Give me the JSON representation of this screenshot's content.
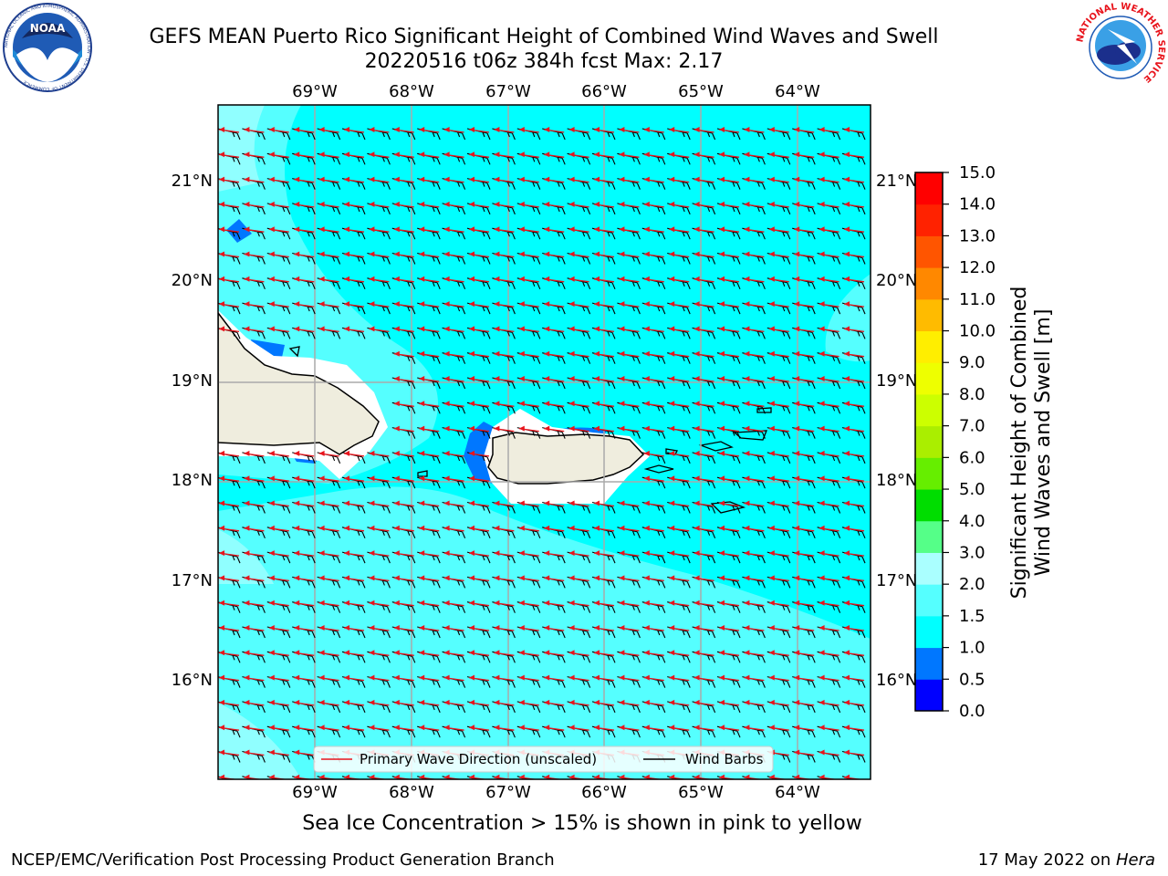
{
  "header": {
    "title_line1": "GEFS MEAN Puerto Rico Significant Height of Combined Wind Waves and Swell",
    "title_line2": "20220516 t06z 384h fcst   Max: 2.17"
  },
  "logos": {
    "noaa_text": "NOAA",
    "noaa_ring": "NATIONAL OCEANIC AND ATMOSPHERIC ADMINISTRATION · U.S. DEPARTMENT OF COMMERCE",
    "nws_ring": "NATIONAL WEATHER SERVICE"
  },
  "map": {
    "lon_labels": [
      "69°W",
      "68°W",
      "67°W",
      "66°W",
      "65°W",
      "64°W"
    ],
    "lat_labels": [
      "21°N",
      "20°N",
      "19°N",
      "18°N",
      "17°N",
      "16°N"
    ],
    "legend": {
      "wave_label": "Primary Wave Direction (unscaled)",
      "barb_label": "Wind Barbs",
      "wave_color": "#e8141c",
      "barb_color": "#000000"
    },
    "ocean_color": "#00ffff",
    "light_cyan": "#55ffff",
    "land_color": "#efedde"
  },
  "colorbar": {
    "label_line1": "Significant Height of Combined",
    "label_line2": "Wind Waves and Swell [m]",
    "ticks": [
      "0.0",
      "0.5",
      "1.0",
      "1.5",
      "2.0",
      "3.0",
      "4.0",
      "5.0",
      "6.0",
      "7.0",
      "8.0",
      "9.0",
      "10.0",
      "11.0",
      "12.0",
      "13.0",
      "14.0",
      "15.0"
    ],
    "colors": [
      "#0000ff",
      "#0077ff",
      "#00ffff",
      "#55ffff",
      "#aaffff",
      "#55ff88",
      "#00dd00",
      "#66ee00",
      "#aaee00",
      "#ccff00",
      "#eeff00",
      "#ffee00",
      "#ffbb00",
      "#ff8800",
      "#ff5500",
      "#ff2200",
      "#ff0000"
    ]
  },
  "bottom_note": "Sea Ice Concentration > 15% is shown in pink to yellow",
  "footer": {
    "left": "NCEP/EMC/Verification Post Processing Product Generation Branch",
    "right_prefix": "17 May 2022 on ",
    "right_host": "Hera"
  }
}
